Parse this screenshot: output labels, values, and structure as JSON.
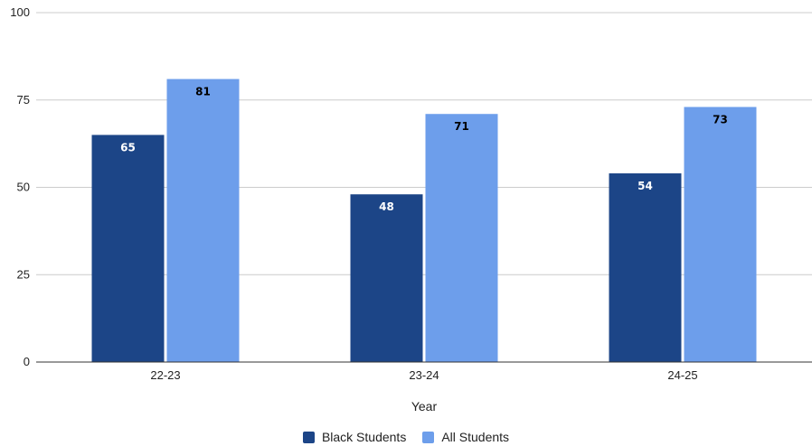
{
  "chart_data": {
    "type": "bar",
    "categories": [
      "22-23",
      "23-24",
      "24-25"
    ],
    "series": [
      {
        "name": "Black Students",
        "values": [
          65,
          48,
          54
        ],
        "color": "#1c4587"
      },
      {
        "name": "All Students",
        "values": [
          81,
          71,
          73
        ],
        "color": "#6d9eeb"
      }
    ],
    "title": "",
    "xlabel": "Year",
    "ylabel": "",
    "ylim": [
      0,
      100
    ],
    "yticks": [
      0,
      25,
      50,
      75,
      100
    ],
    "grid": true,
    "legend_position": "bottom",
    "label_colors": {
      "Black Students": "#ffffff",
      "All Students": "#000000"
    }
  }
}
